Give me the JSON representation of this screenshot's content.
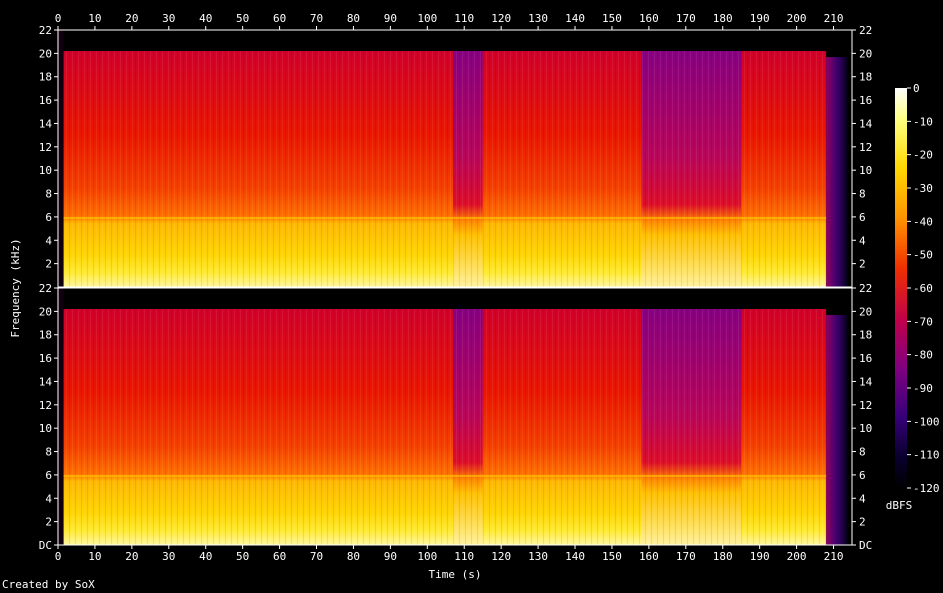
{
  "credit": "Created by SoX",
  "chart_data": {
    "type": "heatmap",
    "title": "",
    "xlabel": "Time (s)",
    "ylabel": "Frequency (kHz)",
    "xlim": [
      0,
      215
    ],
    "ylim": [
      0,
      22
    ],
    "x_ticks": [
      "0",
      "10",
      "20",
      "30",
      "40",
      "50",
      "60",
      "70",
      "80",
      "90",
      "100",
      "110",
      "120",
      "130",
      "140",
      "150",
      "160",
      "170",
      "180",
      "190",
      "200",
      "210"
    ],
    "y_ticks": [
      "DC",
      "2",
      "4",
      "6",
      "8",
      "10",
      "12",
      "14",
      "16",
      "18",
      "20",
      "22"
    ],
    "channels": 2,
    "colorbar": {
      "label": "dBFS",
      "ticks": [
        "0",
        "-10",
        "-20",
        "-30",
        "-40",
        "-50",
        "-60",
        "-70",
        "-80",
        "-90",
        "-100",
        "-110",
        "-120"
      ],
      "range": [
        -120,
        0
      ]
    },
    "notes": {
      "signal_start_s": 1.5,
      "signal_end_s": 214,
      "lowpass_cutoff_khz": 20.2,
      "bright_low_band_khz": 6,
      "quiet_segments_s": [
        [
          107,
          115
        ],
        [
          158,
          185
        ]
      ],
      "fade_out_s": [
        208,
        214
      ]
    }
  }
}
